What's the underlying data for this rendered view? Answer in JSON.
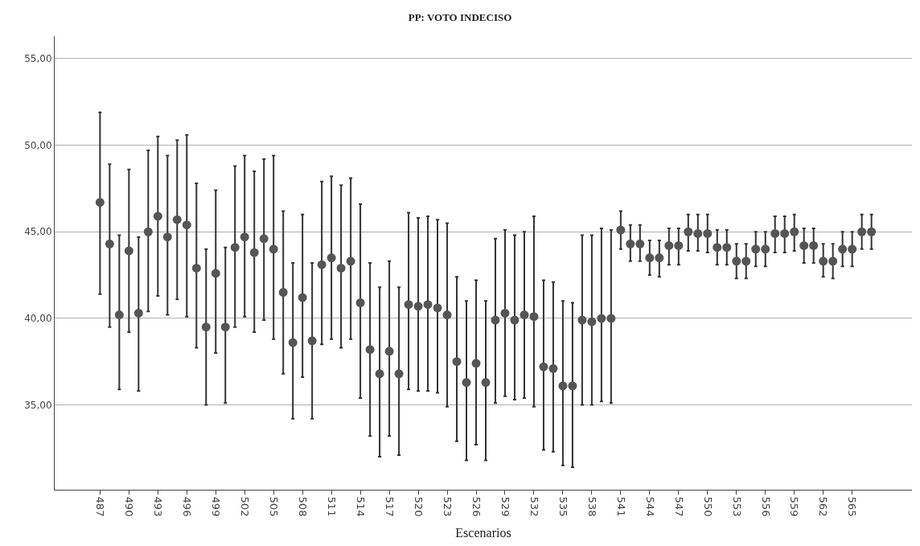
{
  "chart_data": {
    "type": "scatter",
    "title": "PP: VOTO INDECISO",
    "xlabel": "Escenarios",
    "categories": [
      "487",
      null,
      null,
      "490",
      null,
      null,
      "493",
      null,
      null,
      "496",
      null,
      null,
      "499",
      null,
      null,
      "502",
      null,
      null,
      "505",
      null,
      null,
      "508",
      null,
      null,
      "511",
      null,
      null,
      "514",
      null,
      null,
      "517",
      null,
      null,
      "520",
      null,
      null,
      "523",
      null,
      null,
      "526",
      null,
      null,
      "529",
      null,
      null,
      "532",
      null,
      null,
      "535",
      null,
      null,
      "538",
      null,
      null,
      "541",
      null,
      null,
      "544",
      null,
      null,
      "547",
      null,
      null,
      "550",
      null,
      null,
      "553",
      null,
      null,
      "556",
      null,
      null,
      "559",
      null,
      null,
      "562",
      null,
      null,
      "565",
      null,
      null
    ],
    "series": [
      {
        "color": "#555555",
        "values": [
          46.7,
          44.3,
          40.2,
          43.9,
          40.3,
          45.0,
          45.9,
          44.7,
          45.7,
          45.4,
          42.9,
          39.5,
          42.6,
          39.5,
          44.1,
          44.7,
          43.8,
          44.6,
          44.0,
          41.5,
          38.6,
          41.2,
          38.7,
          43.1,
          43.5,
          42.9,
          43.3,
          40.9,
          38.2,
          36.8,
          38.1,
          36.8,
          40.8,
          40.7,
          40.8,
          40.6,
          40.2,
          37.5,
          36.3,
          37.4,
          36.3,
          39.9,
          40.3,
          39.9,
          40.2,
          40.1,
          37.2,
          37.1,
          36.1,
          36.1,
          39.9,
          39.8,
          40.0,
          40.0,
          45.1,
          44.3,
          44.3,
          43.5,
          43.5,
          44.2,
          44.2,
          45.0,
          44.9,
          44.9,
          44.1,
          44.1,
          43.3,
          43.3,
          44.0,
          44.0,
          44.9,
          44.9,
          45.0,
          44.2,
          44.2,
          43.3,
          43.3,
          44.0,
          44.0,
          45.0,
          45.0
        ],
        "errors": [
          [
            41.4,
            51.9
          ],
          [
            39.5,
            48.9
          ],
          [
            35.9,
            44.8
          ],
          [
            39.2,
            48.6
          ],
          [
            35.8,
            44.7
          ],
          [
            40.4,
            49.7
          ],
          [
            41.3,
            50.5
          ],
          [
            40.2,
            49.4
          ],
          [
            41.1,
            50.3
          ],
          [
            40.1,
            50.6
          ],
          [
            38.3,
            47.8
          ],
          [
            35.0,
            44.0
          ],
          [
            38.0,
            47.4
          ],
          [
            35.1,
            44.1
          ],
          [
            39.5,
            48.8
          ],
          [
            40.1,
            49.4
          ],
          [
            39.2,
            48.5
          ],
          [
            39.9,
            49.2
          ],
          [
            38.8,
            49.4
          ],
          [
            36.8,
            46.2
          ],
          [
            34.2,
            43.2
          ],
          [
            36.6,
            46.0
          ],
          [
            34.2,
            43.2
          ],
          [
            38.5,
            47.9
          ],
          [
            38.8,
            48.2
          ],
          [
            38.3,
            47.7
          ],
          [
            38.8,
            48.1
          ],
          [
            35.4,
            46.6
          ],
          [
            33.2,
            43.2
          ],
          [
            32.0,
            41.8
          ],
          [
            33.2,
            43.3
          ],
          [
            32.1,
            41.8
          ],
          [
            35.9,
            46.1
          ],
          [
            35.8,
            45.8
          ],
          [
            35.8,
            45.9
          ],
          [
            35.7,
            45.7
          ],
          [
            34.9,
            45.5
          ],
          [
            32.9,
            42.4
          ],
          [
            31.8,
            41.0
          ],
          [
            32.7,
            42.2
          ],
          [
            31.8,
            41.0
          ],
          [
            35.1,
            44.6
          ],
          [
            35.5,
            45.1
          ],
          [
            35.3,
            44.8
          ],
          [
            35.4,
            45.0
          ],
          [
            34.9,
            45.9
          ],
          [
            32.4,
            42.2
          ],
          [
            32.3,
            42.1
          ],
          [
            31.5,
            41.0
          ],
          [
            31.4,
            40.9
          ],
          [
            35.0,
            44.8
          ],
          [
            35.0,
            44.8
          ],
          [
            35.2,
            45.2
          ],
          [
            35.1,
            45.1
          ],
          [
            44.0,
            46.2
          ],
          [
            43.3,
            45.4
          ],
          [
            43.3,
            45.4
          ],
          [
            42.5,
            44.5
          ],
          [
            42.4,
            44.5
          ],
          [
            43.1,
            45.2
          ],
          [
            43.1,
            45.2
          ],
          [
            43.9,
            46.0
          ],
          [
            43.9,
            46.0
          ],
          [
            43.8,
            46.0
          ],
          [
            43.1,
            45.1
          ],
          [
            43.1,
            45.1
          ],
          [
            42.3,
            44.3
          ],
          [
            42.3,
            44.3
          ],
          [
            43.0,
            45.0
          ],
          [
            43.0,
            45.0
          ],
          [
            43.8,
            45.9
          ],
          [
            43.8,
            45.9
          ],
          [
            43.9,
            46.0
          ],
          [
            43.2,
            45.2
          ],
          [
            43.2,
            45.2
          ],
          [
            42.4,
            44.3
          ],
          [
            42.3,
            44.3
          ],
          [
            43.0,
            45.0
          ],
          [
            43.0,
            45.0
          ],
          [
            44.0,
            46.0
          ],
          [
            44.0,
            46.0
          ]
        ]
      }
    ],
    "ylim": [
      30.1,
      56.3
    ],
    "yticks": [
      {
        "value": 35,
        "label": "35,00"
      },
      {
        "value": 40,
        "label": "40,00"
      },
      {
        "value": 45,
        "label": "45,00"
      },
      {
        "value": 50,
        "label": "50,00"
      },
      {
        "value": 55,
        "label": "55,00"
      }
    ],
    "grid": "y",
    "marker": "circle"
  }
}
